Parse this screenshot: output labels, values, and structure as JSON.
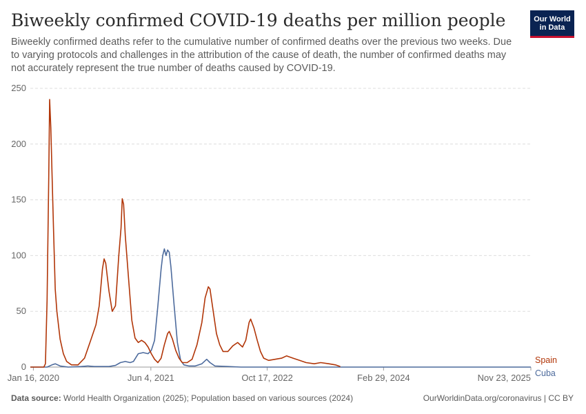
{
  "header": {
    "title": "Biweekly confirmed COVID-19 deaths per million people",
    "subtitle": "Biweekly confirmed deaths refer to the cumulative number of confirmed deaths over the previous two weeks. Due to varying protocols and challenges in the attribution of the cause of death, the number of confirmed deaths may not accurately represent the true number of deaths caused by COVID-19.",
    "logo_line1": "Our World",
    "logo_line2": "in Data"
  },
  "footer": {
    "source_label": "Data source:",
    "source_text": "World Health Organization (2025); Population based on various sources (2024)",
    "right_text": "OurWorldinData.org/coronavirus | CC BY"
  },
  "colors": {
    "spain": "#b13507",
    "cuba": "#4c6a9c",
    "grid": "#dddddd",
    "axis": "#999999"
  },
  "chart_data": {
    "type": "line",
    "title": "Biweekly confirmed COVID-19 deaths per million people",
    "xlabel": "",
    "ylabel": "",
    "ylim": [
      0,
      250
    ],
    "y_ticks": [
      0,
      50,
      100,
      150,
      200,
      250
    ],
    "x_ticks": [
      "Jan 16, 2020",
      "Jun 4, 2021",
      "Oct 17, 2022",
      "Feb 29, 2024",
      "Nov 23, 2025"
    ],
    "xlim": [
      "2020-01-03",
      "2025-11-23"
    ],
    "grid": true,
    "legend": "right-end labels",
    "series": [
      {
        "name": "Spain",
        "points": [
          [
            "2020-01-03",
            0
          ],
          [
            "2020-03-01",
            0
          ],
          [
            "2020-03-08",
            3
          ],
          [
            "2020-03-15",
            60
          ],
          [
            "2020-03-22",
            170
          ],
          [
            "2020-03-26",
            240
          ],
          [
            "2020-03-31",
            215
          ],
          [
            "2020-04-05",
            175
          ],
          [
            "2020-04-12",
            120
          ],
          [
            "2020-04-19",
            70
          ],
          [
            "2020-04-26",
            50
          ],
          [
            "2020-05-10",
            25
          ],
          [
            "2020-05-24",
            12
          ],
          [
            "2020-06-07",
            5
          ],
          [
            "2020-06-28",
            2
          ],
          [
            "2020-07-26",
            2
          ],
          [
            "2020-08-23",
            8
          ],
          [
            "2020-09-20",
            25
          ],
          [
            "2020-10-11",
            38
          ],
          [
            "2020-10-25",
            55
          ],
          [
            "2020-11-08",
            88
          ],
          [
            "2020-11-15",
            97
          ],
          [
            "2020-11-22",
            93
          ],
          [
            "2020-12-06",
            68
          ],
          [
            "2020-12-20",
            50
          ],
          [
            "2021-01-03",
            55
          ],
          [
            "2021-01-17",
            100
          ],
          [
            "2021-01-27",
            125
          ],
          [
            "2021-02-01",
            151
          ],
          [
            "2021-02-07",
            146
          ],
          [
            "2021-02-14",
            118
          ],
          [
            "2021-02-28",
            80
          ],
          [
            "2021-03-14",
            42
          ],
          [
            "2021-03-28",
            26
          ],
          [
            "2021-04-11",
            22
          ],
          [
            "2021-04-25",
            24
          ],
          [
            "2021-05-09",
            22
          ],
          [
            "2021-05-23",
            18
          ],
          [
            "2021-06-06",
            12
          ],
          [
            "2021-06-20",
            7
          ],
          [
            "2021-07-04",
            4
          ],
          [
            "2021-07-18",
            8
          ],
          [
            "2021-08-01",
            20
          ],
          [
            "2021-08-15",
            30
          ],
          [
            "2021-08-22",
            32
          ],
          [
            "2021-09-05",
            25
          ],
          [
            "2021-09-19",
            15
          ],
          [
            "2021-10-03",
            8
          ],
          [
            "2021-10-17",
            4
          ],
          [
            "2021-11-07",
            4
          ],
          [
            "2021-11-28",
            7
          ],
          [
            "2021-12-19",
            20
          ],
          [
            "2022-01-09",
            40
          ],
          [
            "2022-01-23",
            62
          ],
          [
            "2022-02-06",
            72
          ],
          [
            "2022-02-13",
            70
          ],
          [
            "2022-02-27",
            50
          ],
          [
            "2022-03-13",
            30
          ],
          [
            "2022-03-27",
            20
          ],
          [
            "2022-04-10",
            14
          ],
          [
            "2022-05-01",
            14
          ],
          [
            "2022-05-22",
            19
          ],
          [
            "2022-06-12",
            22
          ],
          [
            "2022-07-03",
            18
          ],
          [
            "2022-07-17",
            24
          ],
          [
            "2022-07-31",
            40
          ],
          [
            "2022-08-07",
            43
          ],
          [
            "2022-08-21",
            35
          ],
          [
            "2022-09-04",
            24
          ],
          [
            "2022-09-18",
            14
          ],
          [
            "2022-10-02",
            8
          ],
          [
            "2022-10-23",
            6
          ],
          [
            "2022-11-20",
            7
          ],
          [
            "2022-12-18",
            8
          ],
          [
            "2023-01-08",
            10
          ],
          [
            "2023-02-05",
            8
          ],
          [
            "2023-03-05",
            6
          ],
          [
            "2023-04-02",
            4
          ],
          [
            "2023-05-07",
            3
          ],
          [
            "2023-06-04",
            4
          ],
          [
            "2023-07-09",
            3
          ],
          [
            "2023-08-06",
            2
          ],
          [
            "2023-08-27",
            0.5
          ]
        ]
      },
      {
        "name": "Cuba",
        "points": [
          [
            "2020-01-03",
            0
          ],
          [
            "2020-03-15",
            0
          ],
          [
            "2020-04-05",
            2
          ],
          [
            "2020-04-19",
            3
          ],
          [
            "2020-05-10",
            1
          ],
          [
            "2020-06-14",
            0
          ],
          [
            "2020-08-09",
            0.5
          ],
          [
            "2020-09-06",
            1
          ],
          [
            "2020-10-04",
            0.5
          ],
          [
            "2020-12-06",
            0.5
          ],
          [
            "2021-01-03",
            1.5
          ],
          [
            "2021-01-24",
            4
          ],
          [
            "2021-02-14",
            5
          ],
          [
            "2021-03-07",
            4
          ],
          [
            "2021-03-21",
            5
          ],
          [
            "2021-04-11",
            12
          ],
          [
            "2021-05-02",
            13
          ],
          [
            "2021-05-23",
            12
          ],
          [
            "2021-06-06",
            15
          ],
          [
            "2021-06-20",
            24
          ],
          [
            "2021-07-04",
            55
          ],
          [
            "2021-07-18",
            88
          ],
          [
            "2021-07-25",
            100
          ],
          [
            "2021-08-01",
            106
          ],
          [
            "2021-08-08",
            100
          ],
          [
            "2021-08-15",
            105
          ],
          [
            "2021-08-22",
            103
          ],
          [
            "2021-08-29",
            90
          ],
          [
            "2021-09-12",
            55
          ],
          [
            "2021-09-26",
            22
          ],
          [
            "2021-10-10",
            6
          ],
          [
            "2021-10-24",
            2
          ],
          [
            "2021-11-14",
            1
          ],
          [
            "2021-12-12",
            1
          ],
          [
            "2022-01-09",
            3
          ],
          [
            "2022-01-30",
            7
          ],
          [
            "2022-02-13",
            4
          ],
          [
            "2022-03-06",
            1
          ],
          [
            "2022-05-01",
            0.5
          ],
          [
            "2022-06-26",
            0
          ],
          [
            "2025-11-23",
            0
          ]
        ]
      }
    ]
  }
}
